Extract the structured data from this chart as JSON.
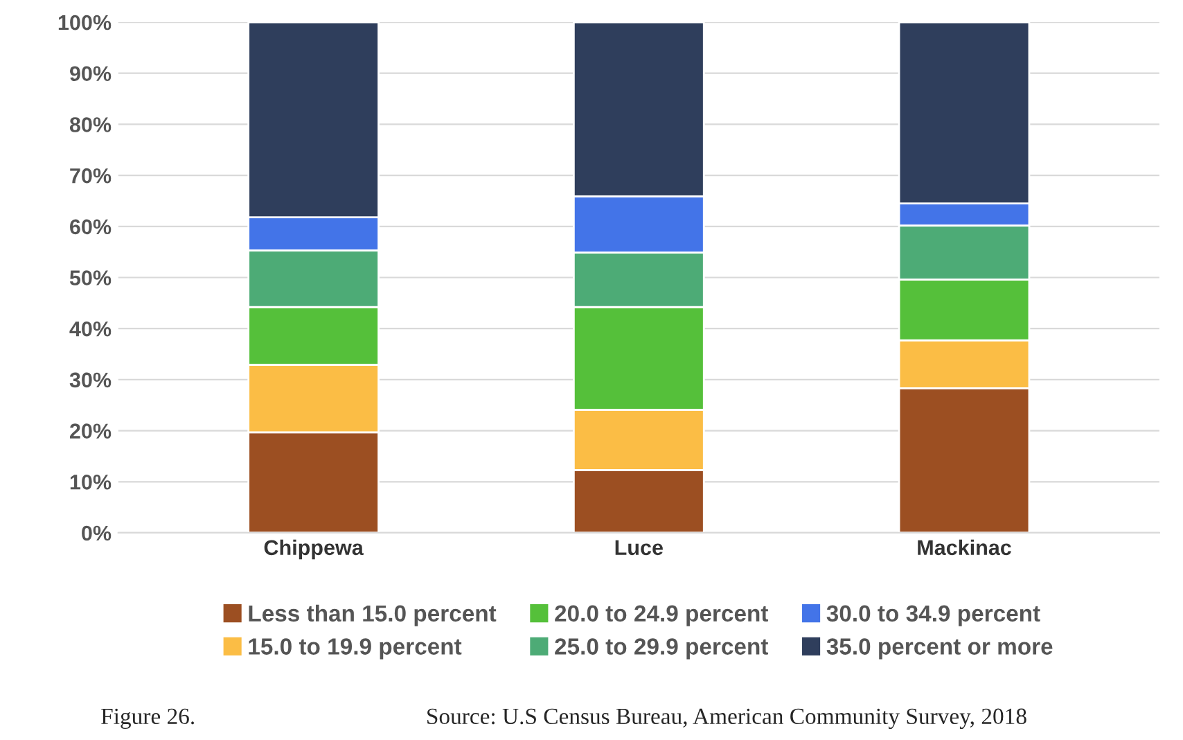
{
  "chart_data": {
    "type": "bar",
    "stacked": true,
    "categories": [
      "Chippewa",
      "Luce",
      "Mackinac"
    ],
    "series": [
      {
        "name": "Less than 15.0 percent",
        "color": "#9c4f22",
        "values": [
          19.7,
          12.3,
          28.3
        ]
      },
      {
        "name": "15.0 to 19.9 percent",
        "color": "#fbbd45",
        "values": [
          13.2,
          11.8,
          9.4
        ]
      },
      {
        "name": "20.0 to 24.9 percent",
        "color": "#55c03a",
        "values": [
          11.3,
          20.1,
          11.9
        ]
      },
      {
        "name": "25.0 to 29.9 percent",
        "color": "#4dab76",
        "values": [
          11.1,
          10.7,
          10.6
        ]
      },
      {
        "name": "30.0 to 34.9 percent",
        "color": "#4374e8",
        "values": [
          6.5,
          11.0,
          4.3
        ]
      },
      {
        "name": "35.0 percent or more",
        "color": "#2f3e5c",
        "values": [
          38.2,
          34.1,
          35.5
        ]
      }
    ],
    "ylim": [
      0,
      100
    ],
    "yticks": [
      {
        "value": 0,
        "label": "0%"
      },
      {
        "value": 10,
        "label": "10%"
      },
      {
        "value": 20,
        "label": "20%"
      },
      {
        "value": 30,
        "label": "30%"
      },
      {
        "value": 40,
        "label": "40%"
      },
      {
        "value": 50,
        "label": "50%"
      },
      {
        "value": 60,
        "label": "60%"
      },
      {
        "value": 70,
        "label": "70%"
      },
      {
        "value": 80,
        "label": "80%"
      },
      {
        "value": 90,
        "label": "90%"
      },
      {
        "value": 100,
        "label": "100%"
      }
    ],
    "grid": "y",
    "legend": "bottom",
    "annotations": [
      "Figure 26.",
      "Source: U.S Census Bureau, American Community Survey, 2018"
    ]
  }
}
